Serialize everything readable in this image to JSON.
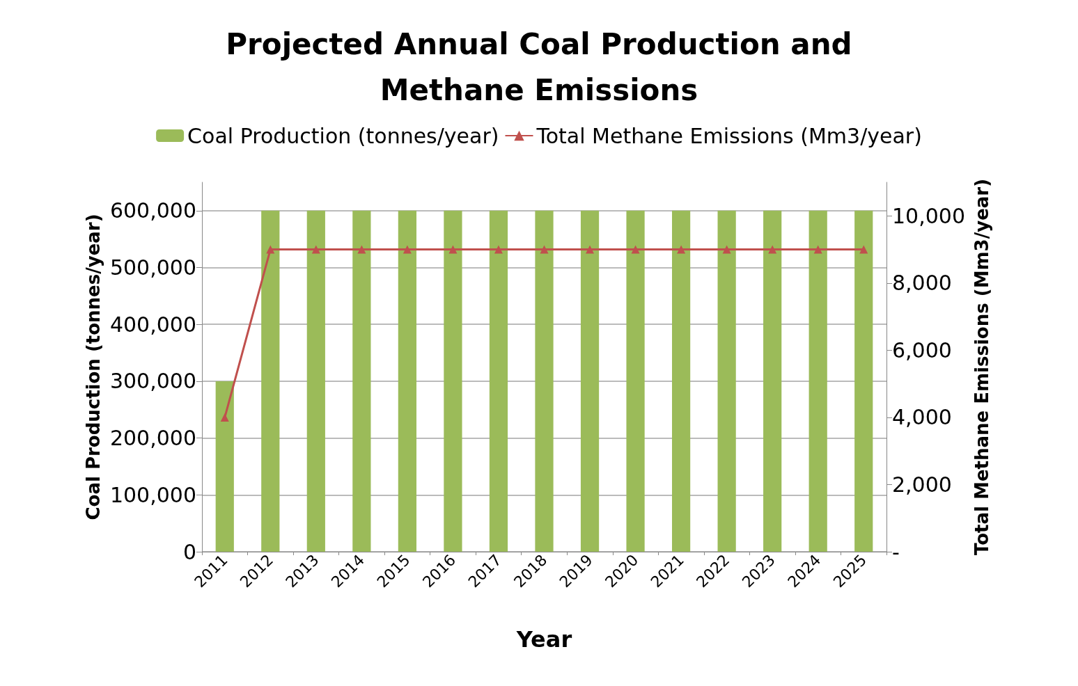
{
  "chart_data": {
    "type": "bar",
    "title": "Projected Annual Coal Production and\nMethane Emissions",
    "xlabel": "Year",
    "ylabel": "Coal Production (tonnes/year)",
    "y2label": "Total Methane Emissions (Mm3/year)",
    "categories": [
      "2011",
      "2012",
      "2013",
      "2014",
      "2015",
      "2016",
      "2017",
      "2018",
      "2019",
      "2020",
      "2021",
      "2022",
      "2023",
      "2024",
      "2025"
    ],
    "series": [
      {
        "name": "Coal Production (tonnes/year)",
        "color": "#9bbb59",
        "values": [
          300000,
          600000,
          600000,
          600000,
          600000,
          600000,
          600000,
          600000,
          600000,
          600000,
          600000,
          600000,
          600000,
          600000,
          600000
        ]
      },
      {
        "name": "Total Methane Emissions (Mm3/year)",
        "type": "line",
        "axis": "y2",
        "color": "#c0504d",
        "marker": "triangle",
        "values": [
          4000,
          9000,
          9000,
          9000,
          9000,
          9000,
          9000,
          9000,
          9000,
          9000,
          9000,
          9000,
          9000,
          9000,
          9000
        ]
      }
    ],
    "ylim": [
      0,
      650000
    ],
    "yticks": [
      0,
      {
        "value": 100000,
        "label": "100,000"
      },
      {
        "value": 200000,
        "label": "200,000"
      },
      {
        "value": 300000,
        "label": "300,000"
      },
      {
        "value": 400000,
        "label": "400,000"
      },
      {
        "value": 500000,
        "label": "500,000"
      },
      {
        "value": 600000,
        "label": "600,000"
      }
    ],
    "y2lim": [
      0,
      11000
    ],
    "y2ticks": [
      {
        "value": 0,
        "label": "-"
      },
      {
        "value": 2000,
        "label": "2,000"
      },
      {
        "value": 4000,
        "label": "4,000"
      },
      {
        "value": 6000,
        "label": "6,000"
      },
      {
        "value": 8000,
        "label": "8,000"
      },
      {
        "value": 10000,
        "label": "10,000"
      }
    ],
    "grid": "y",
    "legend": "top"
  }
}
